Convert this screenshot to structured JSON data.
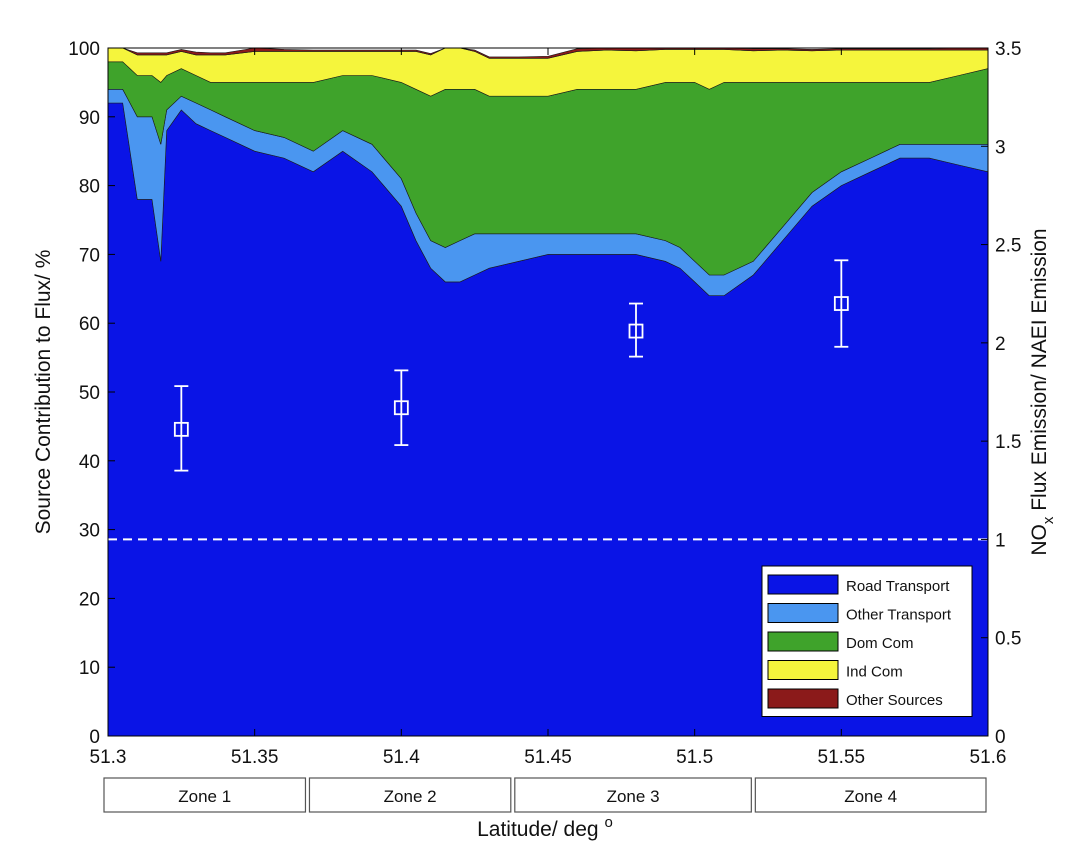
{
  "chart_data": {
    "type": "area",
    "xlabel": "Latitude/ deg",
    "xlabel_suffix": "o",
    "ylabel": "Source Contribution to Flux/ %",
    "y2label_parts": [
      "NO",
      "x",
      " Flux Emission/ NAEI Emission"
    ],
    "xlim": [
      51.3,
      51.6
    ],
    "ylim": [
      0,
      100
    ],
    "y2lim": [
      0,
      3.5
    ],
    "x_ticks": [
      51.3,
      51.35,
      51.4,
      51.45,
      51.5,
      51.55,
      51.6
    ],
    "x_tick_labels": [
      "51.3",
      "51.35",
      "51.4",
      "51.45",
      "51.5",
      "51.55",
      "51.6"
    ],
    "y_ticks": [
      0,
      10,
      20,
      30,
      40,
      50,
      60,
      70,
      80,
      90,
      100
    ],
    "y_tick_labels": [
      "0",
      "10",
      "20",
      "30",
      "40",
      "50",
      "60",
      "70",
      "80",
      "90",
      "100"
    ],
    "y2_ticks": [
      0,
      0.5,
      1,
      1.5,
      2,
      2.5,
      3,
      3.5
    ],
    "y2_tick_labels": [
      "0",
      "0.5",
      "1",
      "1.5",
      "2",
      "2.5",
      "3",
      "3.5"
    ],
    "grid": false,
    "legend_position": "bottom-right",
    "x": [
      51.3,
      51.305,
      51.31,
      51.315,
      51.318,
      51.32,
      51.325,
      51.33,
      51.335,
      51.34,
      51.35,
      51.36,
      51.37,
      51.38,
      51.39,
      51.4,
      51.405,
      51.41,
      51.415,
      51.42,
      51.425,
      51.43,
      51.44,
      51.45,
      51.46,
      51.47,
      51.48,
      51.49,
      51.495,
      51.5,
      51.505,
      51.51,
      51.52,
      51.53,
      51.54,
      51.55,
      51.56,
      51.57,
      51.58,
      51.59,
      51.6
    ],
    "series": [
      {
        "name": "Road Transport",
        "color": "#0a14e6",
        "values": [
          92,
          92,
          78,
          78,
          69,
          88,
          91,
          89,
          88,
          87,
          85,
          84,
          82,
          85,
          82,
          77,
          72,
          68,
          66,
          66,
          67,
          68,
          69,
          70,
          70,
          70,
          70,
          69,
          68,
          66,
          64,
          64,
          67,
          72,
          77,
          80,
          82,
          84,
          84,
          83,
          82
        ]
      },
      {
        "name": "Other Transport",
        "color": "#4a96f0",
        "values": [
          2,
          2,
          12,
          12,
          17,
          3,
          2,
          3,
          3,
          3,
          3,
          3,
          3,
          3,
          4,
          4,
          4,
          4,
          5,
          6,
          6,
          5,
          4,
          3,
          3,
          3,
          3,
          3,
          3,
          3,
          3,
          3,
          2,
          2,
          2,
          2,
          2,
          2,
          2,
          3,
          4
        ]
      },
      {
        "name": "Dom Com",
        "color": "#3fa32b",
        "values": [
          4,
          4,
          6,
          6,
          9,
          5,
          4,
          4,
          4,
          5,
          7,
          8,
          10,
          8,
          10,
          14,
          18,
          21,
          23,
          22,
          21,
          20,
          20,
          20,
          21,
          21,
          21,
          23,
          24,
          26,
          27,
          28,
          26,
          21,
          16,
          13,
          11,
          9,
          9,
          10,
          11
        ]
      },
      {
        "name": "Ind Com",
        "color": "#f5f53c",
        "values": [
          2,
          2,
          3,
          3,
          4,
          3,
          2.5,
          3,
          4,
          4,
          4.5,
          4.5,
          4.5,
          3.5,
          3.5,
          4.5,
          5.5,
          6,
          6,
          6,
          5.5,
          5.5,
          5.5,
          5.5,
          5.5,
          5.7,
          5.6,
          4.8,
          4.8,
          4.8,
          5.8,
          4.8,
          4.6,
          4.7,
          4.6,
          4.7,
          4.7,
          4.7,
          4.7,
          3.7,
          2.7
        ]
      },
      {
        "name": "Other Sources",
        "color": "#8b1a1a",
        "values": [
          0.3,
          0.3,
          0.3,
          0.3,
          0.3,
          0.3,
          0.3,
          0.4,
          0.3,
          0.3,
          0.5,
          0.3,
          0.2,
          0.2,
          0.2,
          0.2,
          0.2,
          0.2,
          0.2,
          0.2,
          0.2,
          0.2,
          0.2,
          0.3,
          0.4,
          0.6,
          0.8,
          0.5,
          0.3,
          0.2,
          0.2,
          0.3,
          0.3,
          0.2,
          0.2,
          0.2,
          0.2,
          0.2,
          0.2,
          0.3,
          0.3
        ]
      }
    ],
    "points": [
      {
        "x": 51.325,
        "y": 1.56,
        "lower": 1.35,
        "upper": 1.78
      },
      {
        "x": 51.4,
        "y": 1.67,
        "lower": 1.48,
        "upper": 1.86
      },
      {
        "x": 51.48,
        "y": 2.06,
        "lower": 1.93,
        "upper": 2.2
      },
      {
        "x": 51.55,
        "y": 2.2,
        "lower": 1.98,
        "upper": 2.42
      }
    ],
    "reference_line": {
      "y2": 1,
      "style": "dashed",
      "color": "#ffffff"
    },
    "zones": [
      {
        "label": "Zone 1",
        "x_start": 51.3,
        "x_end": 51.368
      },
      {
        "label": "Zone 2",
        "x_start": 51.368,
        "x_end": 51.438
      },
      {
        "label": "Zone 3",
        "x_start": 51.438,
        "x_end": 51.52
      },
      {
        "label": "Zone 4",
        "x_start": 51.52,
        "x_end": 51.6
      }
    ]
  }
}
